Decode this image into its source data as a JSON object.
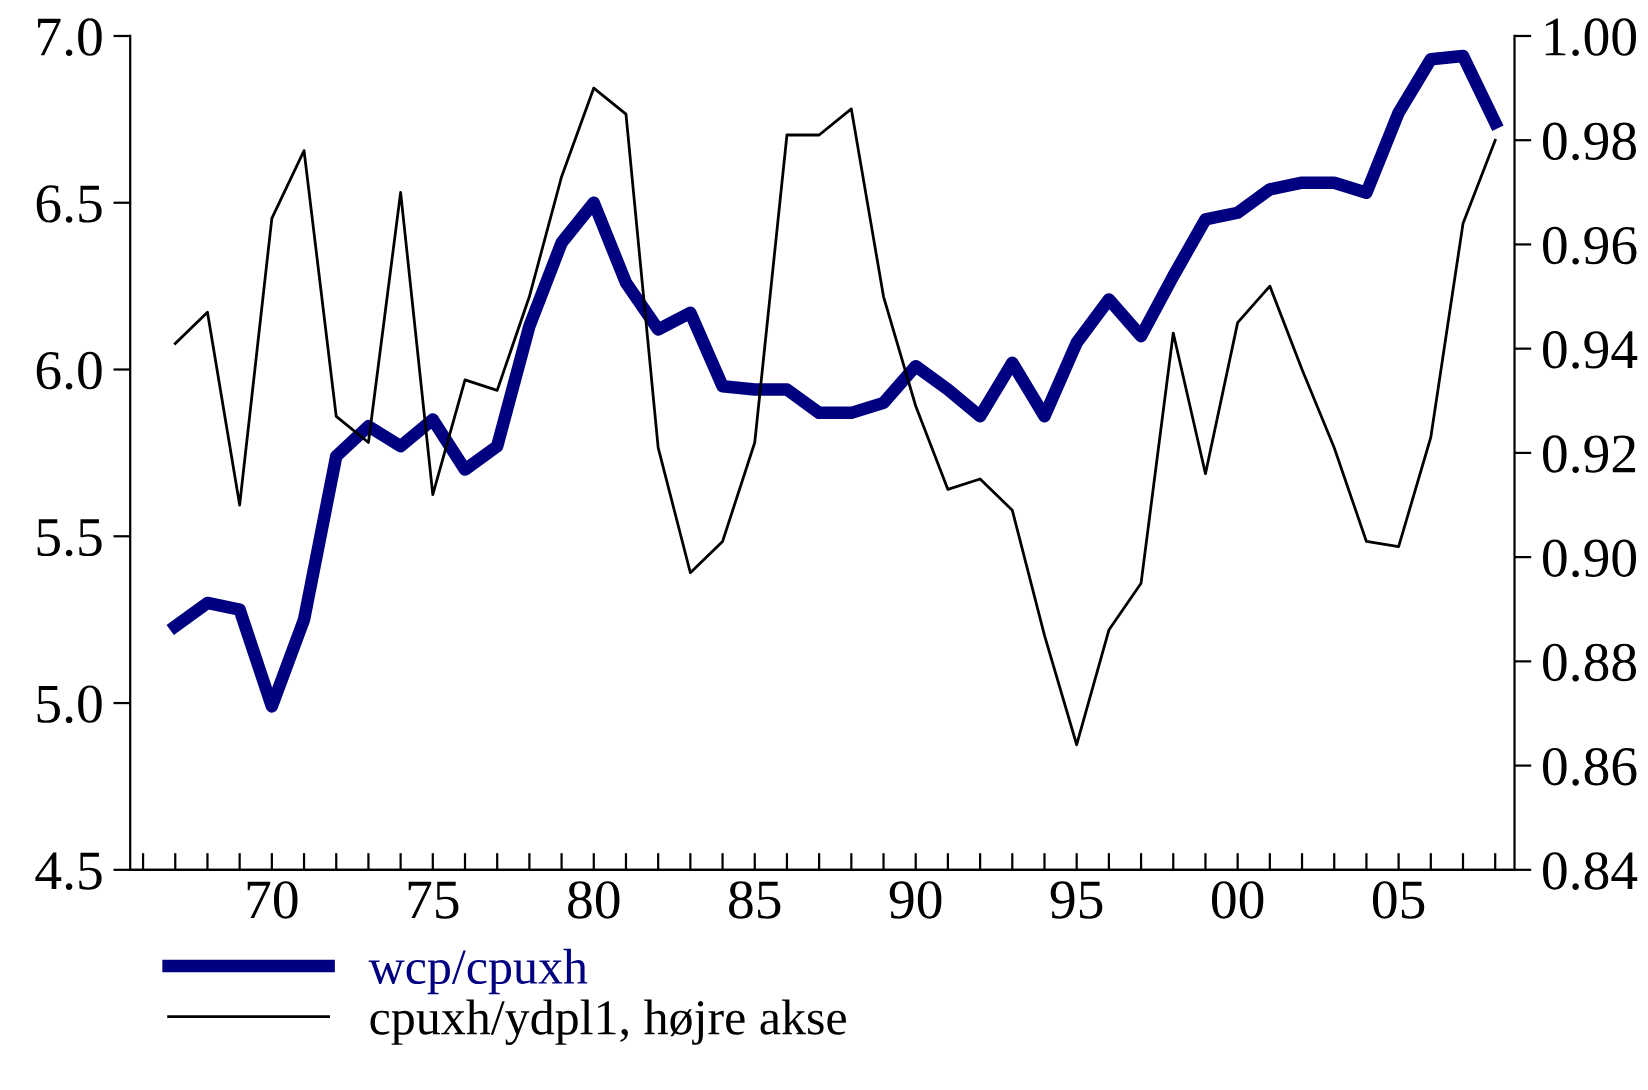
{
  "chart_data": {
    "type": "line",
    "x": [
      1967,
      1968,
      1969,
      1970,
      1971,
      1972,
      1973,
      1974,
      1975,
      1976,
      1977,
      1978,
      1979,
      1980,
      1981,
      1982,
      1983,
      1984,
      1985,
      1986,
      1987,
      1988,
      1989,
      1990,
      1991,
      1992,
      1993,
      1994,
      1995,
      1996,
      1997,
      1998,
      1999,
      2000,
      2001,
      2002,
      2003,
      2004,
      2005,
      2006,
      2007,
      2008
    ],
    "series": [
      {
        "name": "wcp/cpuxh",
        "color": "#000080",
        "values": [
          5.23,
          5.3,
          5.28,
          4.99,
          5.25,
          5.74,
          5.83,
          5.77,
          5.85,
          5.7,
          5.77,
          6.13,
          6.38,
          6.5,
          6.26,
          6.12,
          6.17,
          5.95,
          5.94,
          5.94,
          5.87,
          5.87,
          5.9,
          6.01,
          5.94,
          5.86,
          6.02,
          5.86,
          6.08,
          6.21,
          6.1,
          6.28,
          6.45,
          6.47,
          6.54,
          6.56,
          6.56,
          6.53,
          6.77,
          6.93,
          6.94,
          6.74
        ]
      },
      {
        "name": "cpuxh/ydpl1, højre akse",
        "color": "#000000",
        "axis": "y2",
        "values": [
          0.941,
          0.947,
          0.91,
          0.965,
          0.978,
          0.927,
          0.922,
          0.97,
          0.912,
          0.934,
          0.932,
          0.95,
          0.973,
          0.99,
          0.985,
          0.921,
          0.897,
          0.903,
          0.922,
          0.981,
          0.981,
          0.986,
          0.95,
          0.929,
          0.913,
          0.915,
          0.909,
          0.885,
          0.864,
          0.886,
          0.895,
          0.943,
          0.916,
          0.945,
          0.952,
          0.936,
          0.921,
          0.903,
          0.902,
          0.923,
          0.964,
          0.98
        ]
      }
    ],
    "xlim": [
      1965.6,
      2008.6
    ],
    "xticks": [
      {
        "value": 1966,
        "label": null
      },
      {
        "value": 1967,
        "label": null
      },
      {
        "value": 1968,
        "label": null
      },
      {
        "value": 1969,
        "label": null
      },
      {
        "value": 1970,
        "label": "70"
      },
      {
        "value": 1971,
        "label": null
      },
      {
        "value": 1972,
        "label": null
      },
      {
        "value": 1973,
        "label": null
      },
      {
        "value": 1974,
        "label": null
      },
      {
        "value": 1975,
        "label": "75"
      },
      {
        "value": 1976,
        "label": null
      },
      {
        "value": 1977,
        "label": null
      },
      {
        "value": 1978,
        "label": null
      },
      {
        "value": 1979,
        "label": null
      },
      {
        "value": 1980,
        "label": "80"
      },
      {
        "value": 1981,
        "label": null
      },
      {
        "value": 1982,
        "label": null
      },
      {
        "value": 1983,
        "label": null
      },
      {
        "value": 1984,
        "label": null
      },
      {
        "value": 1985,
        "label": "85"
      },
      {
        "value": 1986,
        "label": null
      },
      {
        "value": 1987,
        "label": null
      },
      {
        "value": 1988,
        "label": null
      },
      {
        "value": 1989,
        "label": null
      },
      {
        "value": 1990,
        "label": "90"
      },
      {
        "value": 1991,
        "label": null
      },
      {
        "value": 1992,
        "label": null
      },
      {
        "value": 1993,
        "label": null
      },
      {
        "value": 1994,
        "label": null
      },
      {
        "value": 1995,
        "label": "95"
      },
      {
        "value": 1996,
        "label": null
      },
      {
        "value": 1997,
        "label": null
      },
      {
        "value": 1998,
        "label": null
      },
      {
        "value": 1999,
        "label": null
      },
      {
        "value": 2000,
        "label": "00"
      },
      {
        "value": 2001,
        "label": null
      },
      {
        "value": 2002,
        "label": null
      },
      {
        "value": 2003,
        "label": null
      },
      {
        "value": 2004,
        "label": null
      },
      {
        "value": 2005,
        "label": "05"
      },
      {
        "value": 2006,
        "label": null
      },
      {
        "value": 2007,
        "label": null
      },
      {
        "value": 2008,
        "label": null
      }
    ],
    "ylim": [
      4.5,
      7.0
    ],
    "yticks": [
      {
        "value": 4.5,
        "label": "4.5"
      },
      {
        "value": 5.0,
        "label": "5.0"
      },
      {
        "value": 5.5,
        "label": "5.5"
      },
      {
        "value": 6.0,
        "label": "6.0"
      },
      {
        "value": 6.5,
        "label": "6.5"
      },
      {
        "value": 7.0,
        "label": "7.0"
      }
    ],
    "y2lim": [
      0.84,
      1.0
    ],
    "y2ticks": [
      {
        "value": 0.84,
        "label": "0.84"
      },
      {
        "value": 0.86,
        "label": "0.86"
      },
      {
        "value": 0.88,
        "label": "0.88"
      },
      {
        "value": 0.9,
        "label": "0.90"
      },
      {
        "value": 0.92,
        "label": "0.92"
      },
      {
        "value": 0.94,
        "label": "0.94"
      },
      {
        "value": 0.96,
        "label": "0.96"
      },
      {
        "value": 0.98,
        "label": "0.98"
      },
      {
        "value": 1.0,
        "label": "1.00"
      }
    ],
    "grid": false,
    "legend": "bottom",
    "marker": "none",
    "line_style": "solid"
  }
}
